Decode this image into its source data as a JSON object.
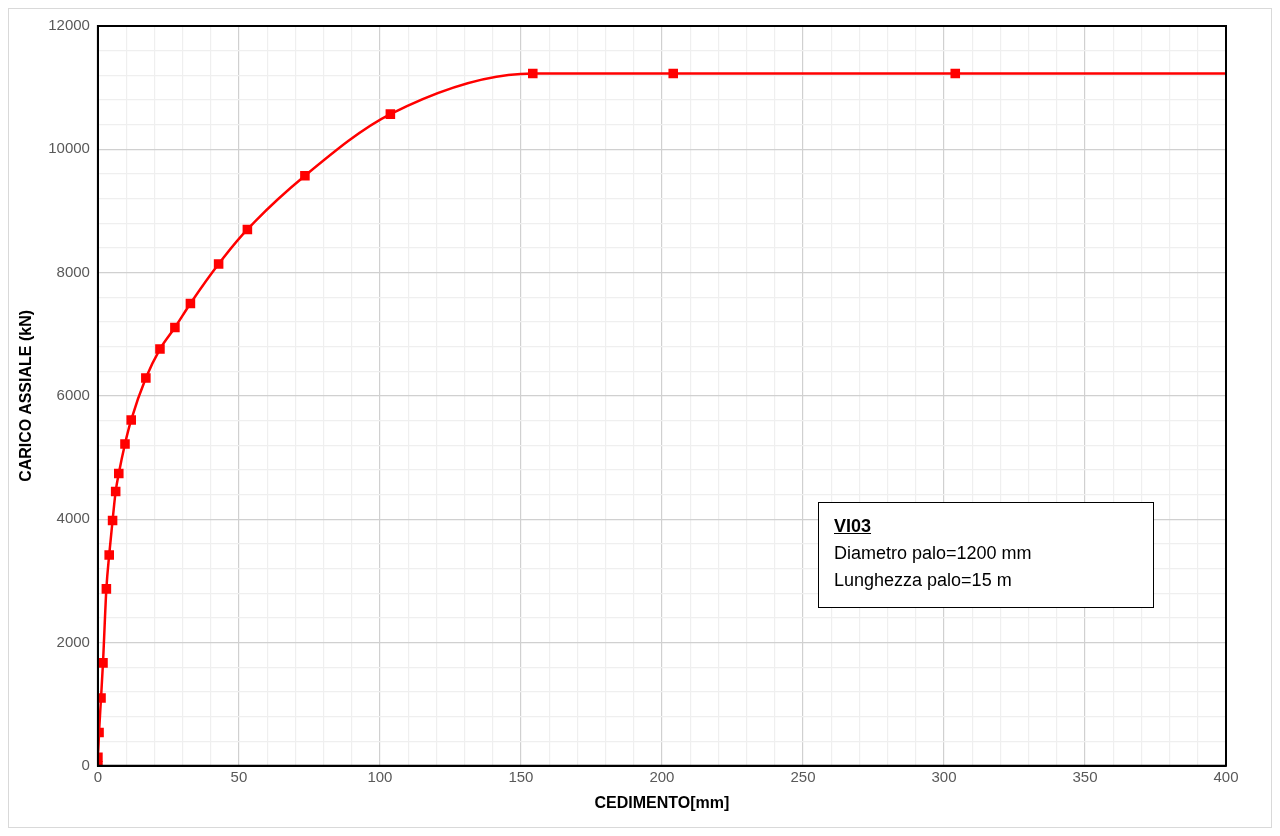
{
  "chart_data": {
    "type": "line",
    "xlabel": "CEDIMENTO[mm]",
    "ylabel": "CARICO ASSIALE (kN)",
    "x": [
      0,
      0,
      0.4,
      1.1,
      1.8,
      3,
      4,
      5.2,
      6.3,
      7.4,
      9.6,
      11.8,
      17,
      22,
      27.3,
      32.8,
      42.8,
      53,
      73.4,
      103.7,
      154.2,
      204,
      304,
      400
    ],
    "series": [
      {
        "color": "#ff0000",
        "values": [
          0,
          140,
          540,
          1100,
          1670,
          2870,
          3420,
          3980,
          4450,
          4740,
          5220,
          5610,
          6290,
          6760,
          7110,
          7500,
          8140,
          8700,
          9570,
          10570,
          11230,
          11230,
          11230,
          11230
        ]
      }
    ],
    "marker": "square",
    "line_style": "solid",
    "grid": true,
    "legend": false,
    "xlim": [
      0,
      400
    ],
    "ylim": [
      0,
      12000
    ],
    "xticks": [
      0,
      {
        "value": 10,
        "label": null
      },
      {
        "value": 20,
        "label": null
      },
      {
        "value": 30,
        "label": null
      },
      {
        "value": 40,
        "label": null
      },
      50,
      {
        "value": 60,
        "label": null
      },
      {
        "value": 70,
        "label": null
      },
      {
        "value": 80,
        "label": null
      },
      {
        "value": 90,
        "label": null
      },
      100,
      {
        "value": 110,
        "label": null
      },
      {
        "value": 120,
        "label": null
      },
      {
        "value": 130,
        "label": null
      },
      {
        "value": 140,
        "label": null
      },
      150,
      {
        "value": 160,
        "label": null
      },
      {
        "value": 170,
        "label": null
      },
      {
        "value": 180,
        "label": null
      },
      {
        "value": 190,
        "label": null
      },
      200,
      {
        "value": 210,
        "label": null
      },
      {
        "value": 220,
        "label": null
      },
      {
        "value": 230,
        "label": null
      },
      {
        "value": 240,
        "label": null
      },
      250,
      {
        "value": 260,
        "label": null
      },
      {
        "value": 270,
        "label": null
      },
      {
        "value": 280,
        "label": null
      },
      {
        "value": 290,
        "label": null
      },
      300,
      {
        "value": 310,
        "label": null
      },
      {
        "value": 320,
        "label": null
      },
      {
        "value": 330,
        "label": null
      },
      {
        "value": 340,
        "label": null
      },
      350,
      {
        "value": 360,
        "label": null
      },
      {
        "value": 370,
        "label": null
      },
      {
        "value": 380,
        "label": null
      },
      {
        "value": 390,
        "label": null
      },
      400
    ],
    "yticks": [
      0,
      {
        "value": 400,
        "label": null
      },
      {
        "value": 800,
        "label": null
      },
      {
        "value": 1200,
        "label": null
      },
      {
        "value": 1600,
        "label": null
      },
      2000,
      {
        "value": 2400,
        "label": null
      },
      {
        "value": 2800,
        "label": null
      },
      {
        "value": 3200,
        "label": null
      },
      {
        "value": 3600,
        "label": null
      },
      4000,
      {
        "value": 4400,
        "label": null
      },
      {
        "value": 4800,
        "label": null
      },
      {
        "value": 5200,
        "label": null
      },
      {
        "value": 5600,
        "label": null
      },
      6000,
      {
        "value": 6400,
        "label": null
      },
      {
        "value": 6800,
        "label": null
      },
      {
        "value": 7200,
        "label": null
      },
      {
        "value": 7600,
        "label": null
      },
      8000,
      {
        "value": 8400,
        "label": null
      },
      {
        "value": 8800,
        "label": null
      },
      {
        "value": 9200,
        "label": null
      },
      {
        "value": 9600,
        "label": null
      },
      10000,
      {
        "value": 10400,
        "label": null
      },
      {
        "value": 10800,
        "label": null
      },
      {
        "value": 11200,
        "label": null
      },
      {
        "value": 11600,
        "label": null
      },
      12000
    ],
    "annotations": [
      "VI03",
      "Diametro palo=1200 mm",
      "Lunghezza palo=15 m"
    ]
  }
}
